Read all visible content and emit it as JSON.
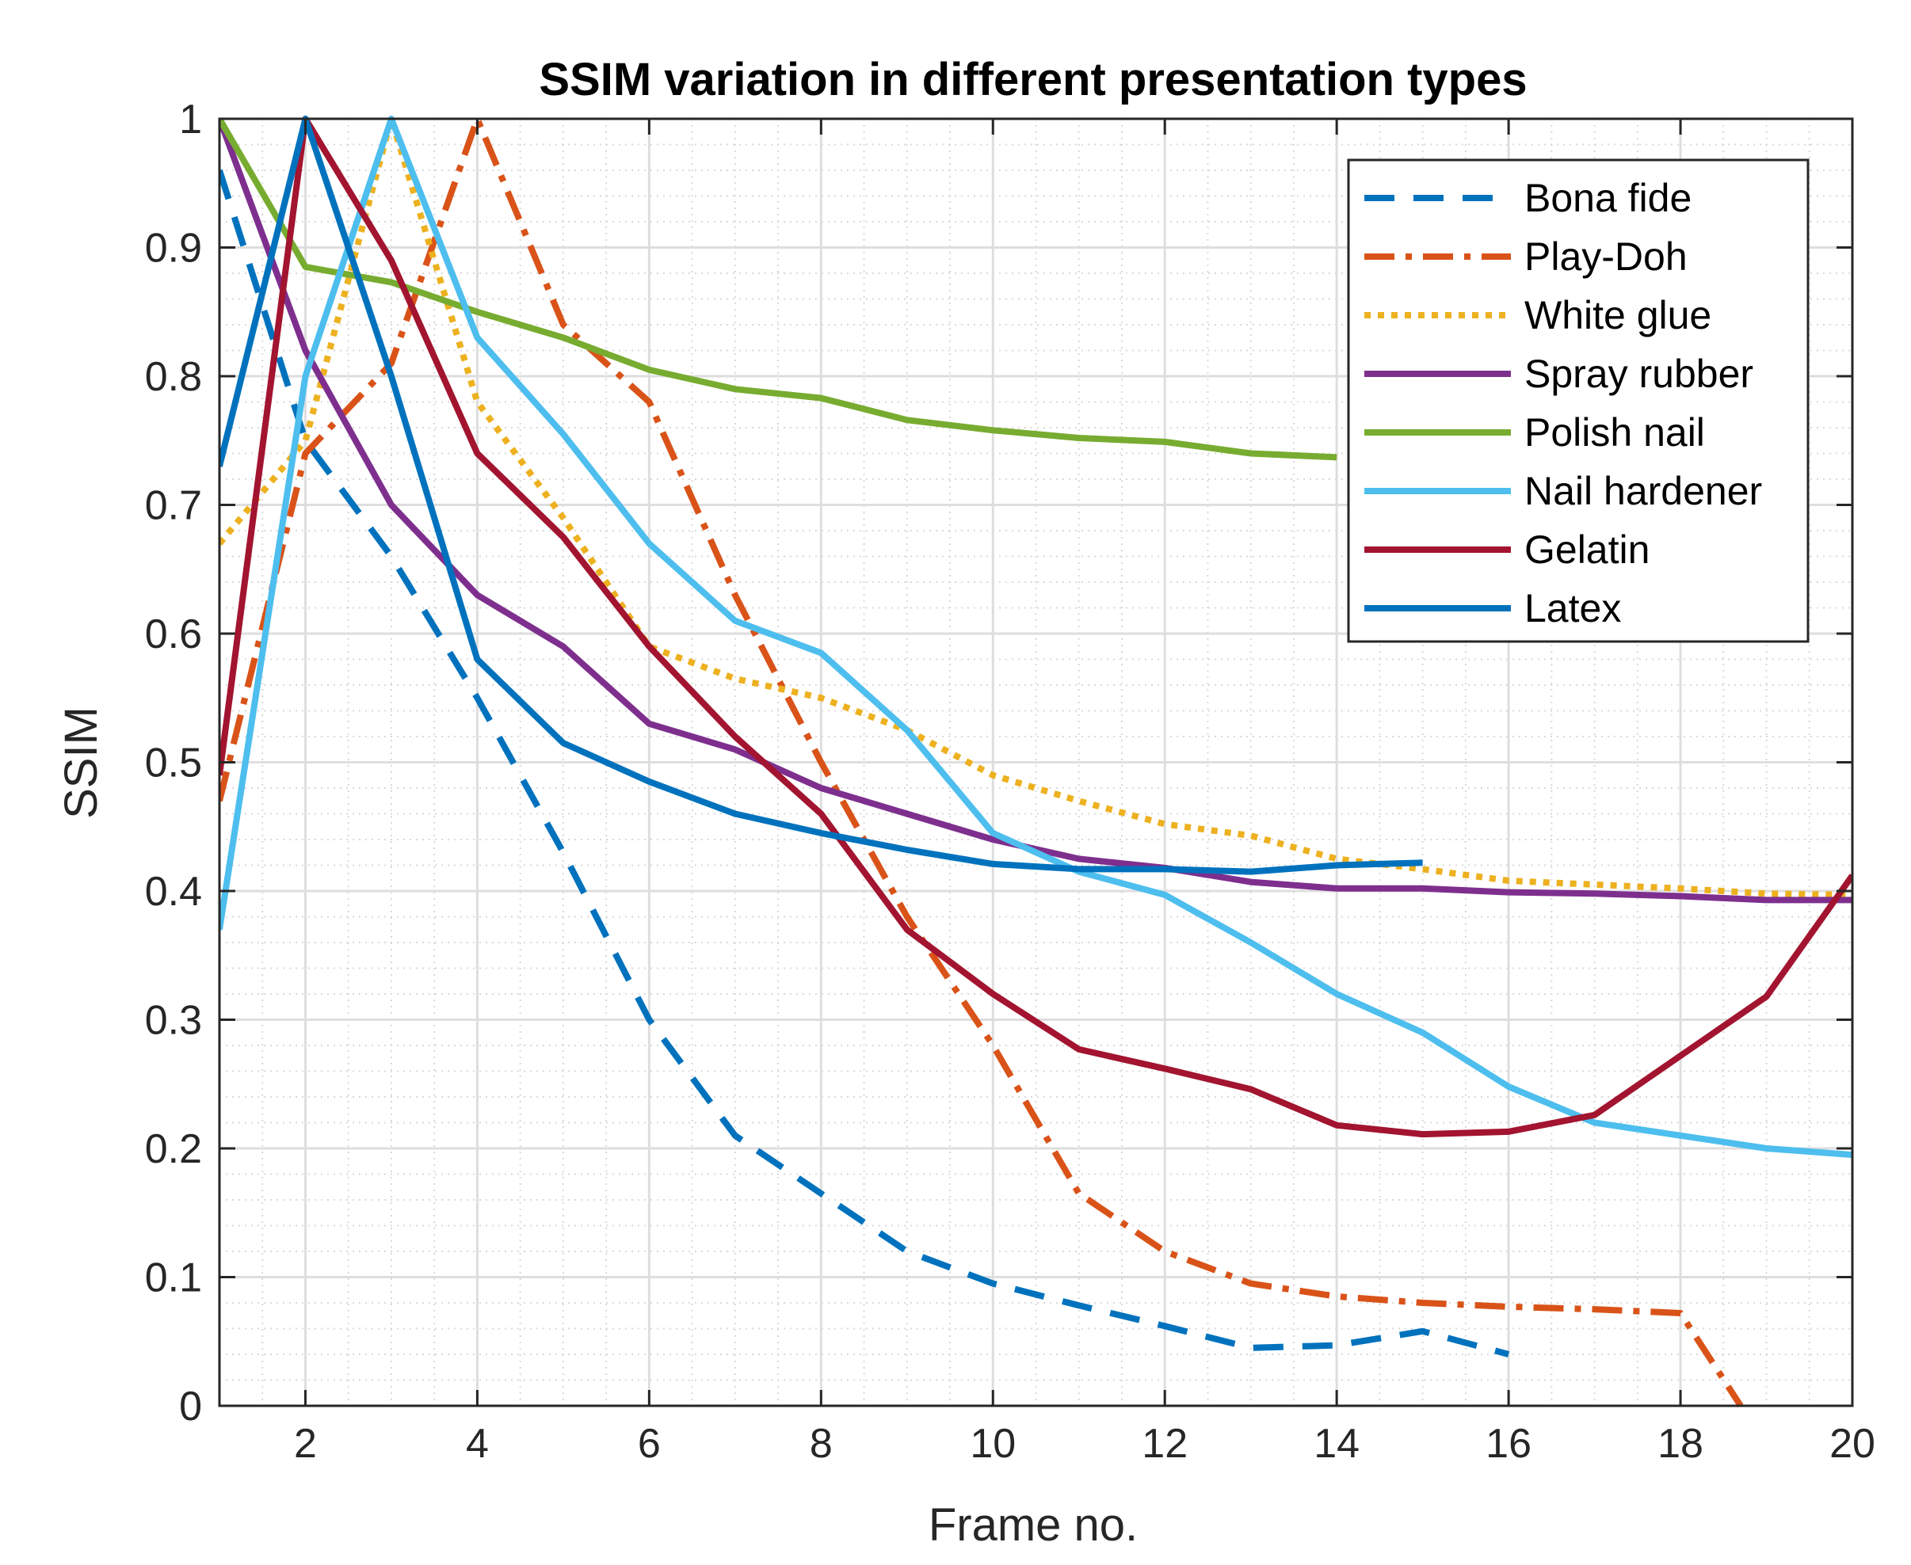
{
  "chart_data": {
    "type": "line",
    "title": "SSIM variation in different presentation types",
    "xlabel": "Frame no.",
    "ylabel": "SSIM",
    "xlim": [
      1,
      20
    ],
    "ylim": [
      0,
      1
    ],
    "x_ticks": [
      2,
      4,
      6,
      8,
      10,
      12,
      14,
      16,
      18,
      20
    ],
    "x_tick_labels": [
      "2",
      "4",
      "6",
      "8",
      "10",
      "12",
      "14",
      "16",
      "18",
      "20"
    ],
    "y_ticks": [
      0,
      0.1,
      0.2,
      0.3,
      0.4,
      0.5,
      0.6,
      0.7,
      0.8,
      0.9,
      1
    ],
    "y_tick_labels": [
      "0",
      "0.1",
      "0.2",
      "0.3",
      "0.4",
      "0.5",
      "0.6",
      "0.7",
      "0.8",
      "0.9",
      "1"
    ],
    "grid": true,
    "minor_grid": true,
    "legend_position": "top-right",
    "series": [
      {
        "name": "Bona fide",
        "color": "#0072BD",
        "style": "dashed",
        "x": [
          1,
          2,
          3,
          4,
          5,
          6,
          7,
          8,
          9,
          10,
          11,
          12,
          13,
          14,
          15,
          16
        ],
        "y": [
          0.96,
          0.75,
          0.66,
          0.55,
          0.43,
          0.3,
          0.21,
          0.165,
          0.12,
          0.095,
          0.078,
          0.062,
          0.045,
          0.047,
          0.058,
          0.04
        ]
      },
      {
        "name": "Play-Doh",
        "color": "#D95319",
        "style": "dashdot",
        "x": [
          1,
          2,
          3,
          4,
          5,
          6,
          7,
          8,
          9,
          10,
          11,
          12,
          13,
          14,
          15,
          16,
          17,
          18,
          18.7
        ],
        "y": [
          0.47,
          0.74,
          0.81,
          1.0,
          0.84,
          0.78,
          0.63,
          0.5,
          0.38,
          0.28,
          0.165,
          0.12,
          0.095,
          0.085,
          0.08,
          0.077,
          0.075,
          0.072,
          0.0
        ]
      },
      {
        "name": "White glue",
        "color": "#EDB120",
        "style": "dotted",
        "x": [
          1,
          2,
          3,
          4,
          5,
          6,
          7,
          8,
          9,
          10,
          11,
          12,
          13,
          14,
          15,
          16,
          17,
          18,
          19,
          20
        ],
        "y": [
          0.67,
          0.75,
          1.0,
          0.78,
          0.69,
          0.59,
          0.565,
          0.55,
          0.525,
          0.49,
          0.47,
          0.452,
          0.443,
          0.425,
          0.417,
          0.408,
          0.405,
          0.402,
          0.398,
          0.397
        ]
      },
      {
        "name": "Spray rubber",
        "color": "#7E2F8E",
        "style": "solid",
        "x": [
          1,
          2,
          3,
          4,
          5,
          6,
          7,
          8,
          9,
          10,
          11,
          12,
          13,
          14,
          15,
          16,
          17,
          18,
          19,
          20
        ],
        "y": [
          1.0,
          0.82,
          0.7,
          0.63,
          0.59,
          0.53,
          0.51,
          0.48,
          0.46,
          0.44,
          0.425,
          0.418,
          0.407,
          0.402,
          0.402,
          0.399,
          0.398,
          0.396,
          0.393,
          0.393
        ]
      },
      {
        "name": "Polish nail",
        "color": "#77AC30",
        "style": "solid",
        "x": [
          1,
          2,
          3,
          4,
          5,
          6,
          7,
          8,
          9,
          10,
          11,
          12,
          13,
          14
        ],
        "y": [
          1.0,
          0.885,
          0.873,
          0.85,
          0.83,
          0.805,
          0.79,
          0.783,
          0.766,
          0.758,
          0.752,
          0.749,
          0.74,
          0.737
        ]
      },
      {
        "name": "Nail hardener",
        "color": "#4DBEEE",
        "style": "solid",
        "x": [
          1,
          2,
          3,
          4,
          5,
          6,
          7,
          8,
          9,
          10,
          11,
          12,
          13,
          14,
          15,
          16,
          17,
          18,
          19,
          20
        ],
        "y": [
          0.37,
          0.8,
          1.0,
          0.83,
          0.755,
          0.67,
          0.61,
          0.585,
          0.525,
          0.445,
          0.415,
          0.397,
          0.36,
          0.32,
          0.29,
          0.248,
          0.22,
          0.21,
          0.2,
          0.195
        ]
      },
      {
        "name": "Gelatin",
        "color": "#A2142F",
        "style": "solid",
        "x": [
          1,
          2,
          3,
          4,
          5,
          6,
          7,
          8,
          9,
          10,
          11,
          12,
          13,
          14,
          15,
          16,
          17,
          18,
          19,
          20
        ],
        "y": [
          0.49,
          1.0,
          0.89,
          0.74,
          0.675,
          0.59,
          0.52,
          0.46,
          0.37,
          0.32,
          0.277,
          0.262,
          0.246,
          0.218,
          0.211,
          0.213,
          0.226,
          0.272,
          0.318,
          0.412
        ]
      },
      {
        "name": "Latex",
        "color": "#0072BD",
        "style": "solid",
        "x": [
          1,
          2,
          3,
          4,
          5,
          6,
          7,
          8,
          9,
          10,
          11,
          12,
          13,
          14,
          15
        ],
        "y": [
          0.73,
          1.0,
          0.8,
          0.58,
          0.515,
          0.485,
          0.46,
          0.445,
          0.432,
          0.421,
          0.417,
          0.417,
          0.415,
          0.42,
          0.422
        ]
      }
    ]
  }
}
